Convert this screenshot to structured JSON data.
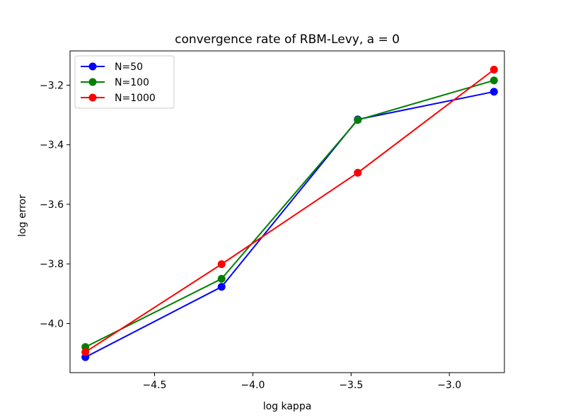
{
  "chart_data": {
    "type": "line",
    "title": "convergence rate of RBM-Levy, a = 0",
    "xlabel": "log kappa",
    "ylabel": "log error",
    "xlim": [
      -4.93,
      -2.72
    ],
    "ylim": [
      -4.165,
      -3.085
    ],
    "xticks": [
      -4.5,
      -4.0,
      -3.5,
      -3.0
    ],
    "xtick_labels": [
      "−4.5",
      "−4.0",
      "−3.5",
      "−3.0"
    ],
    "yticks": [
      -4.0,
      -3.8,
      -3.6,
      -3.4,
      -3.2
    ],
    "ytick_labels": [
      "−4.0",
      "−3.8",
      "−3.6",
      "−3.4",
      "−3.2"
    ],
    "grid": false,
    "legend_position": "top-left",
    "x": [
      -4.852,
      -4.159,
      -3.466,
      -2.773
    ],
    "series": [
      {
        "name": "N=50",
        "color": "#0000ff",
        "values": [
          -4.113,
          -3.877,
          -3.315,
          -3.222
        ]
      },
      {
        "name": "N=100",
        "color": "#008000",
        "values": [
          -4.079,
          -3.85,
          -3.317,
          -3.184
        ]
      },
      {
        "name": "N=1000",
        "color": "#ff0000",
        "values": [
          -4.096,
          -3.801,
          -3.494,
          -3.148
        ]
      }
    ]
  }
}
